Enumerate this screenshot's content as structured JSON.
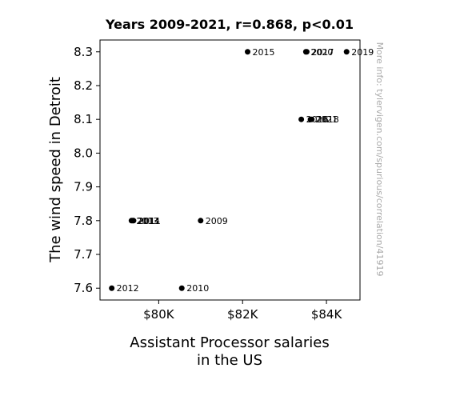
{
  "chart_data": {
    "type": "scatter",
    "title": "Years 2009-2021, r=0.868, p<0.01",
    "xlabel_lines": [
      "Assistant Processor salaries",
      "in the US"
    ],
    "ylabel": "The wind speed in Detroit",
    "xlim": [
      78600,
      84800
    ],
    "ylim": [
      7.565,
      8.335
    ],
    "xticks": [
      {
        "value": 80000,
        "label": "$80K"
      },
      {
        "value": 82000,
        "label": "$82K"
      },
      {
        "value": 84000,
        "label": "$84K"
      }
    ],
    "yticks": [
      {
        "value": 7.6,
        "label": "7.6"
      },
      {
        "value": 7.7,
        "label": "7.7"
      },
      {
        "value": 7.8,
        "label": "7.8"
      },
      {
        "value": 7.9,
        "label": "7.9"
      },
      {
        "value": 8.0,
        "label": "8.0"
      },
      {
        "value": 8.1,
        "label": "8.1"
      },
      {
        "value": 8.2,
        "label": "8.2"
      },
      {
        "value": 8.3,
        "label": "8.3"
      }
    ],
    "points": [
      {
        "label": "2009",
        "x": 81000,
        "y": 7.8
      },
      {
        "label": "2010",
        "x": 80550,
        "y": 7.6
      },
      {
        "label": "2011",
        "x": 79400,
        "y": 7.8
      },
      {
        "label": "2012",
        "x": 78880,
        "y": 7.6
      },
      {
        "label": "2013",
        "x": 79350,
        "y": 7.8
      },
      {
        "label": "2014",
        "x": 79380,
        "y": 7.8
      },
      {
        "label": "2015",
        "x": 82120,
        "y": 8.3
      },
      {
        "label": "2016",
        "x": 83400,
        "y": 8.1
      },
      {
        "label": "2017",
        "x": 83530,
        "y": 8.3
      },
      {
        "label": "2018",
        "x": 83650,
        "y": 8.1
      },
      {
        "label": "2019",
        "x": 84480,
        "y": 8.3
      },
      {
        "label": "2020",
        "x": 83510,
        "y": 8.3
      },
      {
        "label": "2021",
        "x": 83620,
        "y": 8.1
      }
    ],
    "grid": false,
    "marker_color": "#000000"
  },
  "watermark": "More info: tylervigen.com/spurious/correlation/41919"
}
